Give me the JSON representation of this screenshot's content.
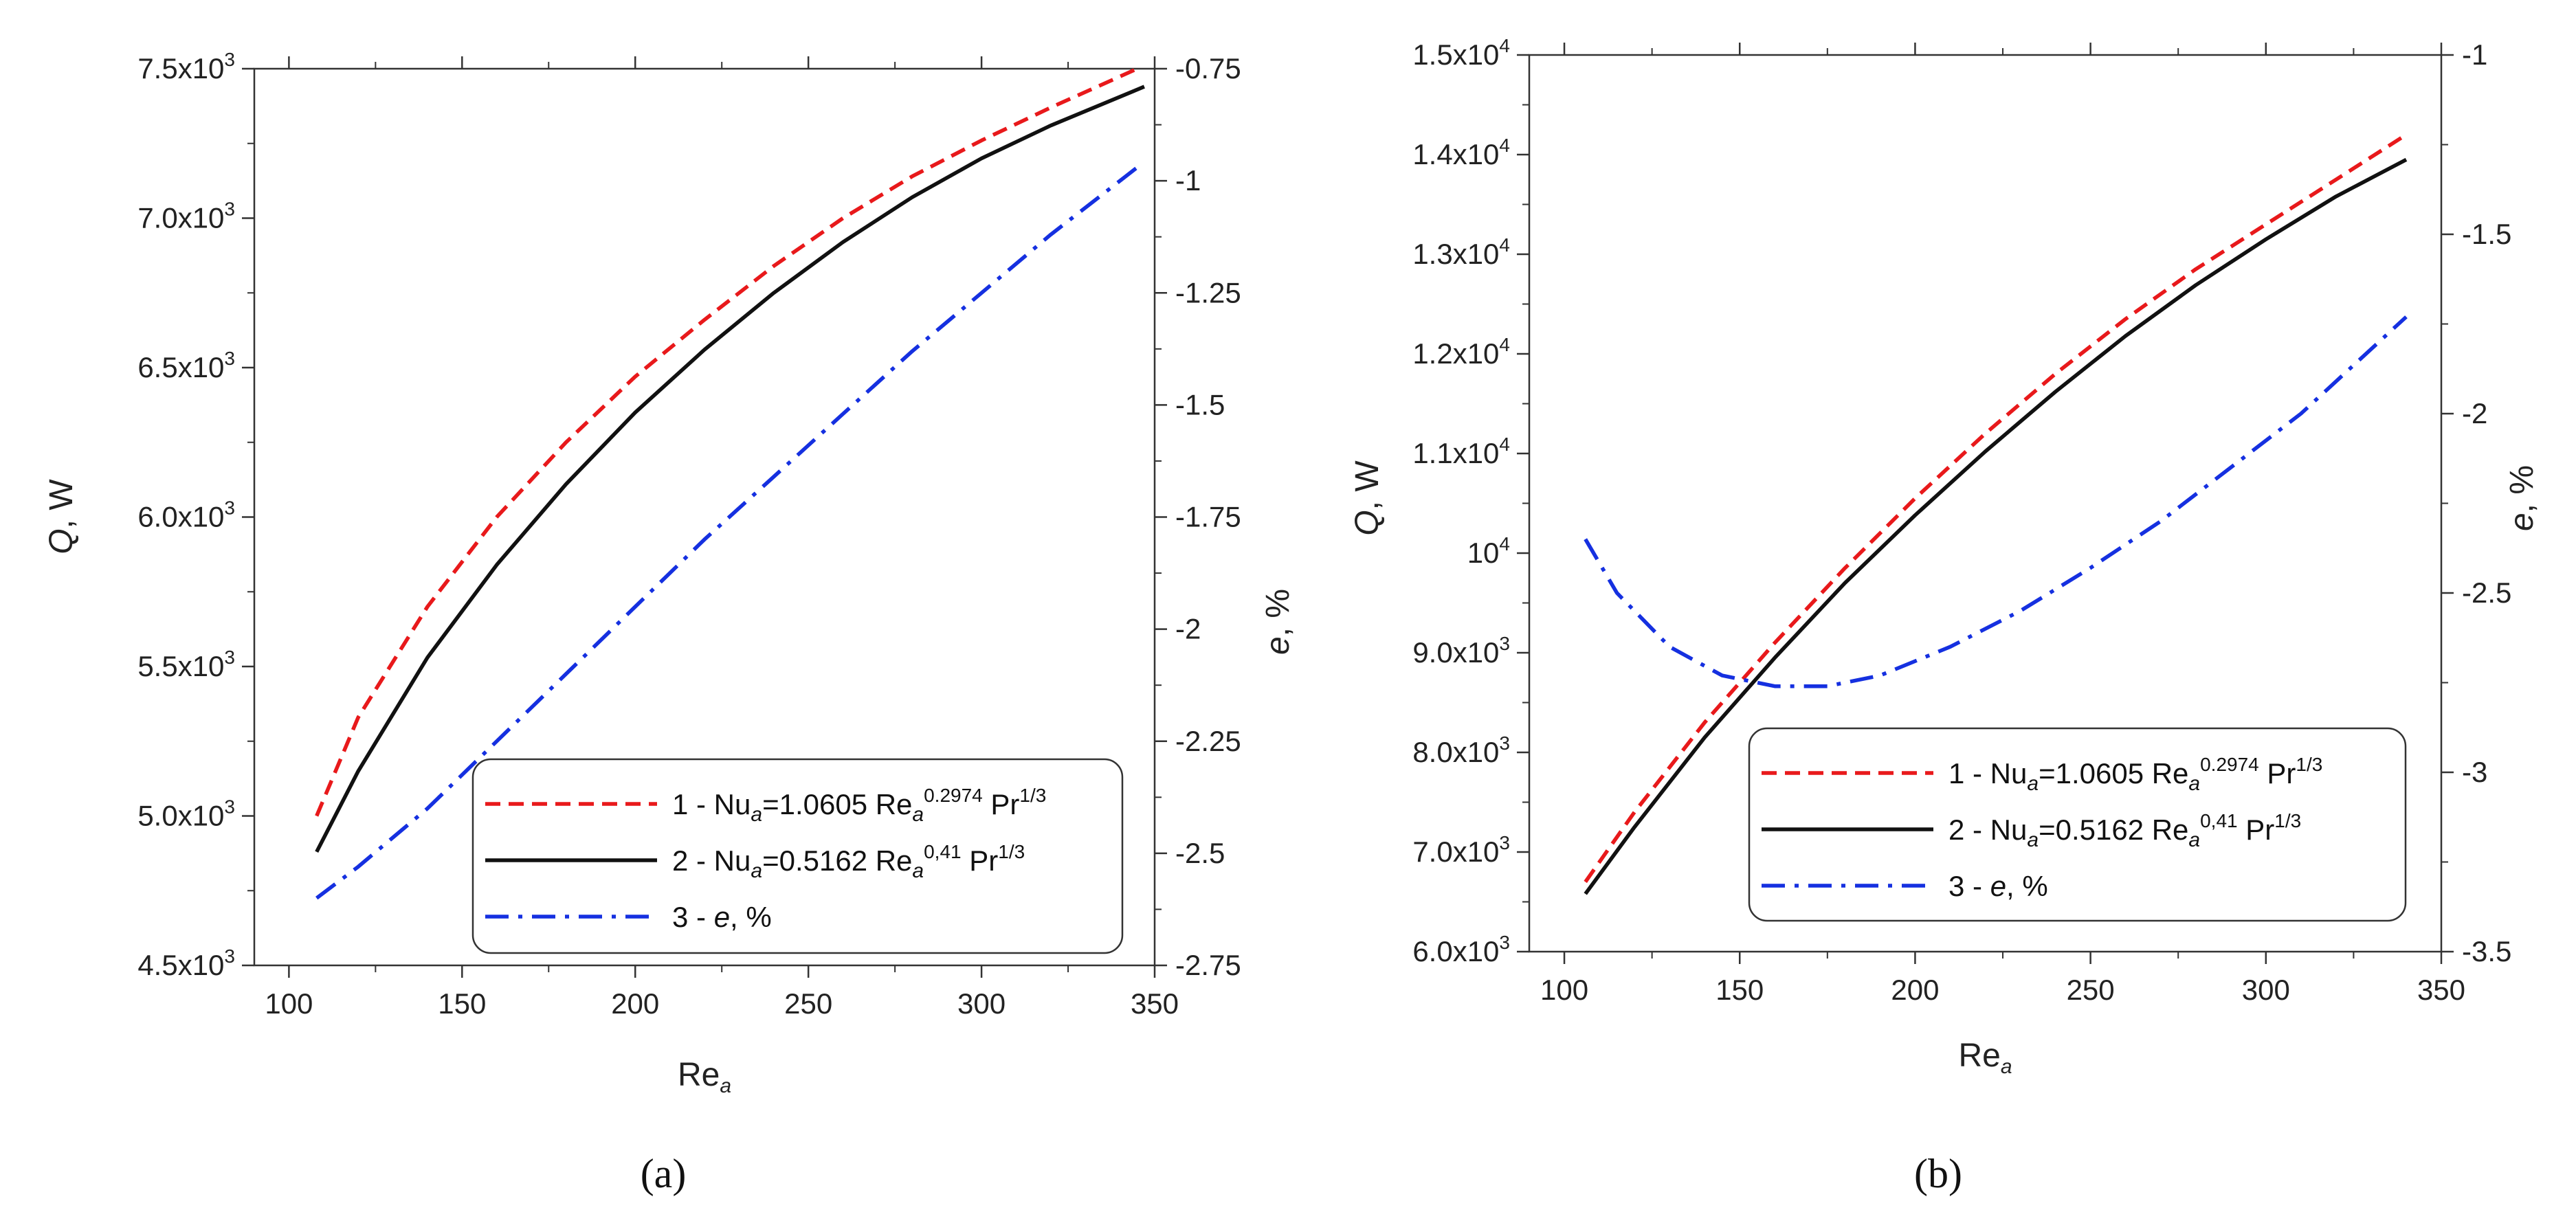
{
  "chart_data": [
    {
      "type": "line",
      "panel_label": "(a)",
      "xlabel": "Re_a",
      "ylabel": "Q, W",
      "y2label": "e, %",
      "xlim": [
        90,
        350
      ],
      "ylim": [
        4500,
        7500
      ],
      "y2lim": [
        -2.75,
        -0.75
      ],
      "x_ticks": [
        100,
        150,
        200,
        250,
        300,
        350
      ],
      "x_tick_labels": [
        "100",
        "150",
        "200",
        "250",
        "300",
        "350"
      ],
      "y_ticks": [
        4500,
        5000,
        5500,
        6000,
        6500,
        7000,
        7500
      ],
      "y_tick_labels": [
        {
          "mant": "4.5x10",
          "exp": "3"
        },
        {
          "mant": "5.0x10",
          "exp": "3"
        },
        {
          "mant": "5.5x10",
          "exp": "3"
        },
        {
          "mant": "6.0x10",
          "exp": "3"
        },
        {
          "mant": "6.5x10",
          "exp": "3"
        },
        {
          "mant": "7.0x10",
          "exp": "3"
        },
        {
          "mant": "7.5x10",
          "exp": "3"
        }
      ],
      "y2_ticks": [
        -2.75,
        -2.5,
        -2.25,
        -2,
        -1.75,
        -1.5,
        -1.25,
        -1,
        -0.75
      ],
      "y2_tick_labels": [
        "-2.75",
        "-2.5",
        "-2.25",
        "-2",
        "-1.75",
        "-1.5",
        "-1.25",
        "-1",
        "-0.75"
      ],
      "legend": [
        {
          "parts": [
            "1 - Nu",
            "a",
            "=1.0605 Re",
            "a",
            "0.2974",
            " Pr",
            "1/3"
          ]
        },
        {
          "parts": [
            "2 - Nu",
            "a",
            "=0.5162 Re",
            "a",
            "0,41",
            " Pr",
            "1/3"
          ]
        },
        {
          "parts": [
            "3 - ",
            "e",
            ", %"
          ]
        }
      ],
      "series": [
        {
          "name": "1 - Nu_a=1.0605 Re_a^0.2974 Pr^1/3",
          "axis": "left",
          "color": "#e8191b",
          "dash": "dashed",
          "x": [
            108,
            120,
            140,
            160,
            180,
            200,
            220,
            240,
            260,
            280,
            300,
            320,
            345
          ],
          "y": [
            5000,
            5330,
            5700,
            6000,
            6250,
            6470,
            6660,
            6840,
            7000,
            7140,
            7260,
            7370,
            7500
          ]
        },
        {
          "name": "2 - Nu_a=0.5162 Re_a^0,41 Pr^1/3",
          "axis": "left",
          "color": "#111111",
          "dash": "solid",
          "x": [
            108,
            120,
            140,
            160,
            180,
            200,
            220,
            240,
            260,
            280,
            300,
            320,
            347
          ],
          "y": [
            4880,
            5150,
            5530,
            5840,
            6110,
            6350,
            6560,
            6750,
            6920,
            7070,
            7200,
            7310,
            7440
          ]
        },
        {
          "name": "3 - e, %",
          "axis": "right",
          "color": "#1530e0",
          "dash": "dashdot",
          "x": [
            108,
            120,
            140,
            160,
            180,
            200,
            220,
            240,
            260,
            280,
            300,
            320,
            345
          ],
          "y": [
            -2.6,
            -2.53,
            -2.4,
            -2.25,
            -2.1,
            -1.95,
            -1.8,
            -1.66,
            -1.52,
            -1.38,
            -1.25,
            -1.12,
            -0.97
          ]
        }
      ]
    },
    {
      "type": "line",
      "panel_label": "(b)",
      "xlabel": "Re_a",
      "ylabel": "Q, W",
      "y2label": "e, %",
      "xlim": [
        90,
        350
      ],
      "ylim": [
        6000,
        15000
      ],
      "y2lim": [
        -3.5,
        -1
      ],
      "x_ticks": [
        100,
        150,
        200,
        250,
        300,
        350
      ],
      "x_tick_labels": [
        "100",
        "150",
        "200",
        "250",
        "300",
        "350"
      ],
      "y_ticks": [
        6000,
        7000,
        8000,
        9000,
        10000,
        11000,
        12000,
        13000,
        14000,
        15000
      ],
      "y_tick_labels": [
        {
          "mant": "6.0x10",
          "exp": "3"
        },
        {
          "mant": "7.0x10",
          "exp": "3"
        },
        {
          "mant": "8.0x10",
          "exp": "3"
        },
        {
          "mant": "9.0x10",
          "exp": "3"
        },
        {
          "mant": "10",
          "exp": "4"
        },
        {
          "mant": "1.1x10",
          "exp": "4"
        },
        {
          "mant": "1.2x10",
          "exp": "4"
        },
        {
          "mant": "1.3x10",
          "exp": "4"
        },
        {
          "mant": "1.4x10",
          "exp": "4"
        },
        {
          "mant": "1.5x10",
          "exp": "4"
        }
      ],
      "y2_ticks": [
        -3.5,
        -3,
        -2.5,
        -2,
        -1.5,
        -1
      ],
      "y2_tick_labels": [
        "-3.5",
        "-3",
        "-2.5",
        "-2",
        "-1.5",
        "-1"
      ],
      "legend": [
        {
          "parts": [
            "1 - Nu",
            "a",
            "=1.0605 Re",
            "a",
            "0.2974",
            " Pr",
            "1/3"
          ]
        },
        {
          "parts": [
            "2 - Nu",
            "a",
            "=0.5162 Re",
            "a",
            "0,41",
            " Pr",
            "1/3"
          ]
        },
        {
          "parts": [
            "3 - ",
            "e",
            ", %"
          ]
        }
      ],
      "series": [
        {
          "name": "1 - Nu_a=1.0605 Re_a^0.2974 Pr^1/3",
          "axis": "left",
          "color": "#e8191b",
          "dash": "dashed",
          "x": [
            106,
            120,
            140,
            160,
            180,
            200,
            220,
            240,
            260,
            280,
            300,
            320,
            340
          ],
          "y": [
            6700,
            7400,
            8300,
            9100,
            9850,
            10550,
            11200,
            11800,
            12350,
            12850,
            13300,
            13750,
            14200
          ]
        },
        {
          "name": "2 - Nu_a=0.5162 Re_a^0,41 Pr^1/3",
          "axis": "left",
          "color": "#111111",
          "dash": "solid",
          "x": [
            106,
            120,
            140,
            160,
            180,
            200,
            220,
            240,
            260,
            280,
            300,
            320,
            340
          ],
          "y": [
            6580,
            7250,
            8150,
            8950,
            9700,
            10380,
            11020,
            11620,
            12180,
            12690,
            13150,
            13580,
            13950
          ]
        },
        {
          "name": "3 - e, %",
          "axis": "right",
          "color": "#1530e0",
          "dash": "dashdot",
          "x": [
            106,
            115,
            130,
            145,
            160,
            175,
            190,
            210,
            230,
            250,
            270,
            290,
            310,
            340
          ],
          "y": [
            -2.35,
            -2.5,
            -2.65,
            -2.73,
            -2.76,
            -2.76,
            -2.73,
            -2.65,
            -2.55,
            -2.43,
            -2.3,
            -2.15,
            -2,
            -1.73
          ]
        }
      ]
    }
  ],
  "panel_labels": {
    "a": "(a)",
    "b": "(b)"
  }
}
